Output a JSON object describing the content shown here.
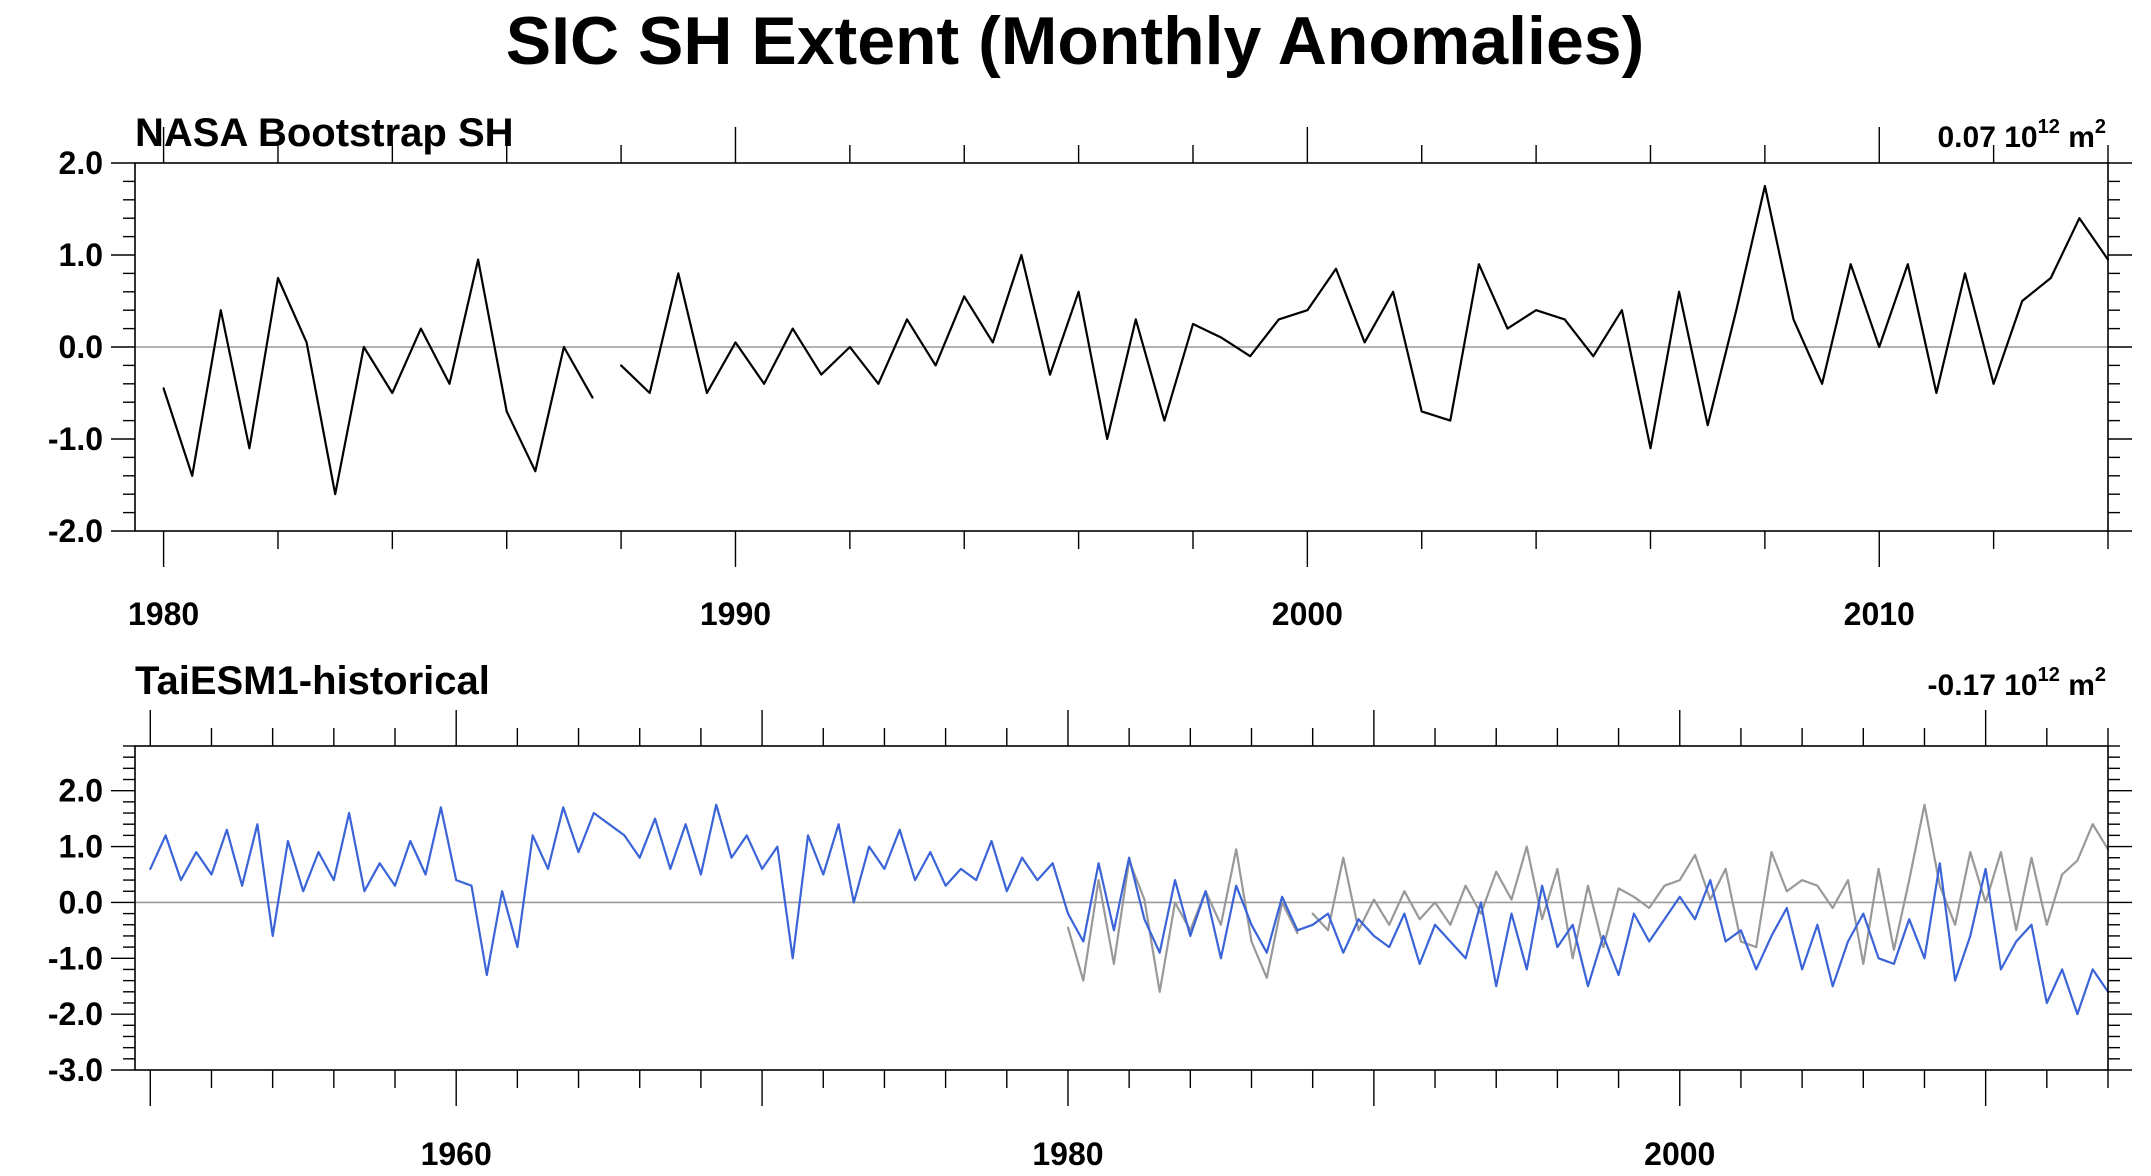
{
  "title": "SIC SH Extent (Monthly Anomalies)",
  "chart_data": [
    {
      "type": "line",
      "title": "NASA Bootstrap SH",
      "stat_value": "0.07",
      "stat_base": "10",
      "stat_exp": "12",
      "stat_unit": "m",
      "stat_unit_exp": "2",
      "xlim": [
        1979.5,
        2014.0
      ],
      "ylim": [
        -2.0,
        2.0
      ],
      "x_ticks": [
        1980,
        1990,
        2000,
        2010
      ],
      "y_ticks": [
        -2.0,
        -1.0,
        0.0,
        1.0,
        2.0
      ],
      "y_tick_labels": [
        "-2.0",
        "-1.0",
        "0.0",
        "1.0",
        "2.0"
      ],
      "grid": false,
      "series": [
        {
          "color": "#000000",
          "segments": [
            {
              "x": [
                1980.0,
                1980.5,
                1981.0,
                1981.5,
                1982.0,
                1982.5,
                1983.0,
                1983.5,
                1984.0,
                1984.5,
                1985.0,
                1985.5,
                1986.0,
                1986.5,
                1987.0,
                1987.5
              ],
              "y": [
                -0.45,
                -1.4,
                0.4,
                -1.1,
                0.75,
                0.05,
                -1.6,
                0.0,
                -0.5,
                0.2,
                -0.4,
                0.95,
                -0.7,
                -1.35,
                0.0,
                -0.55
              ]
            },
            {
              "x": [
                1988.0,
                1988.5,
                1989.0,
                1989.5,
                1990.0,
                1990.5,
                1991.0,
                1991.5,
                1992.0,
                1992.5,
                1993.0,
                1993.5,
                1994.0,
                1994.5,
                1995.0,
                1995.5,
                1996.0,
                1996.5,
                1997.0,
                1997.5,
                1998.0,
                1998.5,
                1999.0,
                1999.5,
                2000.0,
                2000.5,
                2001.0,
                2001.5,
                2002.0,
                2002.5,
                2003.0,
                2003.5,
                2004.0,
                2004.5,
                2005.0,
                2005.5,
                2006.0,
                2006.5,
                2007.0,
                2007.5,
                2008.0,
                2008.5,
                2009.0,
                2009.5,
                2010.0,
                2010.5,
                2011.0,
                2011.5,
                2012.0,
                2012.5,
                2013.0,
                2013.5,
                2014.0
              ],
              "y": [
                -0.2,
                -0.5,
                0.8,
                -0.5,
                0.05,
                -0.4,
                0.2,
                -0.3,
                0.0,
                -0.4,
                0.3,
                -0.2,
                0.55,
                0.05,
                1.0,
                -0.3,
                0.6,
                -1.0,
                0.3,
                -0.8,
                0.25,
                0.1,
                -0.1,
                0.3,
                0.4,
                0.85,
                0.05,
                0.6,
                -0.7,
                -0.8,
                0.9,
                0.2,
                0.4,
                0.3,
                -0.1,
                0.4,
                -1.1,
                0.6,
                -0.85,
                0.4,
                1.75,
                0.3,
                -0.4,
                0.9,
                0.0,
                0.9,
                -0.5,
                0.8,
                -0.4,
                0.5,
                0.75,
                1.4,
                0.95
              ]
            }
          ]
        }
      ]
    },
    {
      "type": "line",
      "title": "TaiESM1-historical",
      "stat_value": "-0.17",
      "stat_base": "10",
      "stat_exp": "12",
      "stat_unit": "m",
      "stat_unit_exp": "2",
      "xlim": [
        1949.5,
        2014.0
      ],
      "ylim": [
        -3.0,
        2.8
      ],
      "x_ticks": [
        1960,
        1980,
        2000
      ],
      "y_ticks": [
        -3.0,
        -2.0,
        -1.0,
        0.0,
        1.0,
        2.0
      ],
      "y_tick_labels": [
        "-3.0",
        "-2.0",
        "-1.0",
        "0.0",
        "1.0",
        "2.0"
      ],
      "grid": false,
      "series": [
        {
          "color": "#999999",
          "segments": [
            {
              "x": [
                1980.0,
                1980.5,
                1981.0,
                1981.5,
                1982.0,
                1982.5,
                1983.0,
                1983.5,
                1984.0,
                1984.5,
                1985.0,
                1985.5,
                1986.0,
                1986.5,
                1987.0,
                1987.5
              ],
              "y": [
                -0.45,
                -1.4,
                0.4,
                -1.1,
                0.75,
                0.05,
                -1.6,
                0.0,
                -0.5,
                0.2,
                -0.4,
                0.95,
                -0.7,
                -1.35,
                0.0,
                -0.55
              ]
            },
            {
              "x": [
                1988.0,
                1988.5,
                1989.0,
                1989.5,
                1990.0,
                1990.5,
                1991.0,
                1991.5,
                1992.0,
                1992.5,
                1993.0,
                1993.5,
                1994.0,
                1994.5,
                1995.0,
                1995.5,
                1996.0,
                1996.5,
                1997.0,
                1997.5,
                1998.0,
                1998.5,
                1999.0,
                1999.5,
                2000.0,
                2000.5,
                2001.0,
                2001.5,
                2002.0,
                2002.5,
                2003.0,
                2003.5,
                2004.0,
                2004.5,
                2005.0,
                2005.5,
                2006.0,
                2006.5,
                2007.0,
                2007.5,
                2008.0,
                2008.5,
                2009.0,
                2009.5,
                2010.0,
                2010.5,
                2011.0,
                2011.5,
                2012.0,
                2012.5,
                2013.0,
                2013.5,
                2014.0
              ],
              "y": [
                -0.2,
                -0.5,
                0.8,
                -0.5,
                0.05,
                -0.4,
                0.2,
                -0.3,
                0.0,
                -0.4,
                0.3,
                -0.2,
                0.55,
                0.05,
                1.0,
                -0.3,
                0.6,
                -1.0,
                0.3,
                -0.8,
                0.25,
                0.1,
                -0.1,
                0.3,
                0.4,
                0.85,
                0.05,
                0.6,
                -0.7,
                -0.8,
                0.9,
                0.2,
                0.4,
                0.3,
                -0.1,
                0.4,
                -1.1,
                0.6,
                -0.85,
                0.4,
                1.75,
                0.3,
                -0.4,
                0.9,
                0.0,
                0.9,
                -0.5,
                0.8,
                -0.4,
                0.5,
                0.75,
                1.4,
                0.95
              ]
            }
          ]
        },
        {
          "color": "#3a64d8",
          "segments": [
            {
              "x": [
                1950.0,
                1950.5,
                1951.0,
                1951.5,
                1952.0,
                1952.5,
                1953.0,
                1953.5,
                1954.0,
                1954.5,
                1955.0,
                1955.5,
                1956.0,
                1956.5,
                1957.0,
                1957.5,
                1958.0,
                1958.5,
                1959.0,
                1959.5,
                1960.0,
                1960.5,
                1961.0,
                1961.5,
                1962.0,
                1962.5,
                1963.0,
                1963.5,
                1964.0,
                1964.5,
                1965.0,
                1965.5,
                1966.0,
                1966.5,
                1967.0,
                1967.5,
                1968.0,
                1968.5,
                1969.0,
                1969.5,
                1970.0,
                1970.5,
                1971.0,
                1971.5,
                1972.0,
                1972.5,
                1973.0,
                1973.5,
                1974.0,
                1974.5,
                1975.0,
                1975.5,
                1976.0,
                1976.5,
                1977.0,
                1977.5,
                1978.0,
                1978.5,
                1979.0,
                1979.5,
                1980.0,
                1980.5,
                1981.0,
                1981.5,
                1982.0,
                1982.5,
                1983.0,
                1983.5,
                1984.0,
                1984.5,
                1985.0,
                1985.5,
                1986.0,
                1986.5,
                1987.0,
                1987.5,
                1988.0,
                1988.5,
                1989.0,
                1989.5,
                1990.0,
                1990.5,
                1991.0,
                1991.5,
                1992.0,
                1992.5,
                1993.0,
                1993.5,
                1994.0,
                1994.5,
                1995.0,
                1995.5,
                1996.0,
                1996.5,
                1997.0,
                1997.5,
                1998.0,
                1998.5,
                1999.0,
                1999.5,
                2000.0,
                2000.5,
                2001.0,
                2001.5,
                2002.0,
                2002.5,
                2003.0,
                2003.5,
                2004.0,
                2004.5,
                2005.0,
                2005.5,
                2006.0,
                2006.5,
                2007.0,
                2007.5,
                2008.0,
                2008.5,
                2009.0,
                2009.5,
                2010.0,
                2010.5,
                2011.0,
                2011.5,
                2012.0,
                2012.5,
                2013.0,
                2013.5,
                2014.0
              ],
              "y": [
                0.6,
                1.2,
                0.4,
                0.9,
                0.5,
                1.3,
                0.3,
                1.4,
                -0.6,
                1.1,
                0.2,
                0.9,
                0.4,
                1.6,
                0.2,
                0.7,
                0.3,
                1.1,
                0.5,
                1.7,
                0.4,
                0.3,
                -1.3,
                0.2,
                -0.8,
                1.2,
                0.6,
                1.7,
                0.9,
                1.6,
                1.4,
                1.2,
                0.8,
                1.5,
                0.6,
                1.4,
                0.5,
                1.75,
                0.8,
                1.2,
                0.6,
                1.0,
                -1.0,
                1.2,
                0.5,
                1.4,
                0.0,
                1.0,
                0.6,
                1.3,
                0.4,
                0.9,
                0.3,
                0.6,
                0.4,
                1.1,
                0.2,
                0.8,
                0.4,
                0.7,
                -0.2,
                -0.7,
                0.7,
                -0.5,
                0.8,
                -0.3,
                -0.9,
                0.4,
                -0.6,
                0.2,
                -1.0,
                0.3,
                -0.4,
                -0.9,
                0.1,
                -0.5,
                -0.4,
                -0.2,
                -0.9,
                -0.3,
                -0.6,
                -0.8,
                -0.2,
                -1.1,
                -0.4,
                -0.7,
                -1.0,
                0.0,
                -1.5,
                -0.2,
                -1.2,
                0.3,
                -0.8,
                -0.4,
                -1.5,
                -0.6,
                -1.3,
                -0.2,
                -0.7,
                -0.3,
                0.1,
                -0.3,
                0.4,
                -0.7,
                -0.5,
                -1.2,
                -0.6,
                -0.1,
                -1.2,
                -0.4,
                -1.5,
                -0.7,
                -0.2,
                -1.0,
                -1.1,
                -0.3,
                -1.0,
                0.7,
                -1.4,
                -0.6,
                0.6,
                -1.2,
                -0.7,
                -0.4,
                -1.8,
                -1.2,
                -2.0,
                -1.2,
                -1.6
              ]
            }
          ]
        }
      ]
    }
  ]
}
